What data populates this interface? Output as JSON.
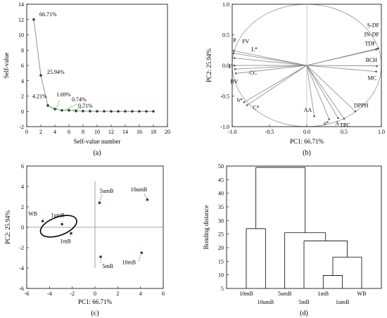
{
  "chart_data": [
    {
      "type": "line",
      "panel_label": "(a)",
      "xlabel": "Self-value number",
      "ylabel": "Self-value",
      "xlim": [
        0,
        20
      ],
      "ylim": [
        -2,
        14
      ],
      "xticks": [
        0,
        2,
        4,
        6,
        8,
        10,
        12,
        14,
        16,
        18,
        20
      ],
      "yticks": [
        -2,
        0,
        2,
        4,
        6,
        8,
        10,
        12,
        14
      ],
      "x": [
        1,
        2,
        3,
        4,
        5,
        6,
        7,
        8,
        9,
        10,
        11,
        12,
        13,
        14,
        15,
        16,
        17,
        18
      ],
      "y": [
        12.0,
        4.7,
        0.76,
        0.3,
        0.13,
        0.13,
        0.05,
        0.03,
        0.02,
        0.01,
        0.01,
        0.0,
        0.0,
        0.0,
        0.0,
        0.0,
        0.0,
        0.0
      ],
      "annotations": [
        "66.71%",
        "25.94%",
        "4.21%",
        "1.69%",
        "0.74%",
        "0.71%"
      ]
    },
    {
      "type": "scatter",
      "subtype": "loading-plot",
      "panel_label": "(b)",
      "xlabel": "PC1: 66.71%",
      "ylabel": "PC2: 25.94%",
      "xlim": [
        -1.0,
        1.0
      ],
      "ylim": [
        -1.0,
        1.0
      ],
      "xticks": [
        -1.0,
        -0.5,
        0.0,
        0.5,
        1.0
      ],
      "yticks": [
        -1.0,
        -0.5,
        0.0,
        0.5,
        1.0
      ],
      "vectors": [
        {
          "name": "S-DF",
          "x": 0.96,
          "y": 0.28
        },
        {
          "name": "IN-DF",
          "x": 0.94,
          "y": 0.27
        },
        {
          "name": "TDF",
          "x": 0.93,
          "y": 0.26
        },
        {
          "name": "BCH",
          "x": 0.94,
          "y": -0.01
        },
        {
          "name": "MC",
          "x": 0.93,
          "y": -0.1
        },
        {
          "name": "DPPH",
          "x": 0.65,
          "y": -0.75
        },
        {
          "name": "TPC",
          "x": 0.5,
          "y": -0.87
        },
        {
          "name": "A",
          "x": 0.42,
          "y": -0.86
        },
        {
          "name": "a*",
          "x": 0.3,
          "y": -0.88
        },
        {
          "name": "AA",
          "x": 0.1,
          "y": -0.83
        },
        {
          "name": "P",
          "x": -0.98,
          "y": 0.24
        },
        {
          "name": "FV",
          "x": -0.98,
          "y": 0.2
        },
        {
          "name": "L*",
          "x": -0.97,
          "y": 0.12
        },
        {
          "name": "F",
          "x": -0.97,
          "y": 0.0
        },
        {
          "name": "CC",
          "x": -0.96,
          "y": -0.06
        },
        {
          "name": "BV",
          "x": -0.95,
          "y": -0.13
        },
        {
          "name": "b*",
          "x": -0.84,
          "y": -0.6
        },
        {
          "name": "C*",
          "x": -0.8,
          "y": -0.65
        }
      ]
    },
    {
      "type": "scatter",
      "panel_label": "(c)",
      "xlabel": "PC1: 66.71%",
      "ylabel": "PC2: 25.94%",
      "xlim": [
        -6,
        6
      ],
      "ylim": [
        -6,
        6
      ],
      "xticks": [
        -6,
        -4,
        -2,
        0,
        2,
        4,
        6
      ],
      "yticks": [
        -6,
        -4,
        -2,
        0,
        2,
        4,
        6
      ],
      "points": [
        {
          "name": "WB",
          "x": -4.6,
          "y": 0.6
        },
        {
          "name": "1umB",
          "x": -2.9,
          "y": 0.3
        },
        {
          "name": "1mB",
          "x": -2.1,
          "y": -0.6
        },
        {
          "name": "5umB",
          "x": 0.4,
          "y": 2.4
        },
        {
          "name": "10umB",
          "x": 4.6,
          "y": 2.7
        },
        {
          "name": "5mB",
          "x": 0.5,
          "y": -2.9
        },
        {
          "name": "10mB",
          "x": 4.1,
          "y": -2.5
        }
      ]
    },
    {
      "type": "dendrogram",
      "panel_label": "(d)",
      "ylabel": "Bonding distance",
      "ylim": [
        5,
        50
      ],
      "yticks": [
        5,
        10,
        15,
        20,
        25,
        30,
        35,
        40,
        45,
        50
      ],
      "leaves": [
        "10mB",
        "10umB",
        "5umB",
        "5mB",
        "1mB",
        "1umB",
        "WB"
      ],
      "merges": [
        {
          "left": "1mB",
          "right": "1umB",
          "height": 9.8
        },
        {
          "left": "1mB+1umB",
          "right": "WB",
          "height": 16.5
        },
        {
          "left": "5mB",
          "right": "1mB+1umB+WB",
          "height": 22.5
        },
        {
          "left": "5umB",
          "right": "5mB+1mB+1umB+WB",
          "height": 25.5
        },
        {
          "left": "10mB",
          "right": "10umB",
          "height": 27.0
        },
        {
          "left": "10mB+10umB",
          "right": "rest",
          "height": 49.5
        }
      ]
    }
  ]
}
